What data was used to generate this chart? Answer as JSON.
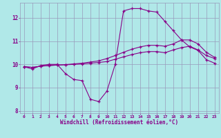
{
  "xlabel": "Windchill (Refroidissement éolien,°C)",
  "bg_color": "#b0e8e8",
  "grid_color": "#9999bb",
  "line_color": "#880088",
  "xlim": [
    -0.5,
    23.5
  ],
  "ylim": [
    7.9,
    12.65
  ],
  "xticks": [
    0,
    1,
    2,
    3,
    4,
    5,
    6,
    7,
    8,
    9,
    10,
    11,
    12,
    13,
    14,
    15,
    16,
    17,
    18,
    19,
    20,
    21,
    22,
    23
  ],
  "yticks": [
    8,
    9,
    10,
    11,
    12
  ],
  "line1_x": [
    0,
    1,
    2,
    3,
    4,
    5,
    6,
    7,
    8,
    9,
    10,
    11,
    12,
    13,
    14,
    15,
    16,
    17,
    18,
    19,
    20,
    21,
    22,
    23
  ],
  "line1_y": [
    9.9,
    9.8,
    9.95,
    10.0,
    10.0,
    9.6,
    9.35,
    9.3,
    8.5,
    8.4,
    8.85,
    10.0,
    12.3,
    12.4,
    12.4,
    12.3,
    12.25,
    11.85,
    11.45,
    11.05,
    10.75,
    10.6,
    10.2,
    10.05
  ],
  "line2_x": [
    0,
    1,
    2,
    3,
    4,
    5,
    6,
    7,
    8,
    9,
    10,
    11,
    12,
    13,
    14,
    15,
    16,
    17,
    18,
    19,
    20,
    21,
    22,
    23
  ],
  "line2_y": [
    9.9,
    9.87,
    9.92,
    9.95,
    9.97,
    9.98,
    10.0,
    10.02,
    10.05,
    10.08,
    10.12,
    10.22,
    10.32,
    10.42,
    10.5,
    10.55,
    10.55,
    10.5,
    10.62,
    10.72,
    10.78,
    10.62,
    10.38,
    10.25
  ],
  "line3_x": [
    0,
    1,
    2,
    3,
    4,
    5,
    6,
    7,
    8,
    9,
    10,
    11,
    12,
    13,
    14,
    15,
    16,
    17,
    18,
    19,
    20,
    21,
    22,
    23
  ],
  "line3_y": [
    9.9,
    9.87,
    9.92,
    9.95,
    9.97,
    9.99,
    10.02,
    10.05,
    10.1,
    10.15,
    10.25,
    10.38,
    10.52,
    10.65,
    10.75,
    10.82,
    10.82,
    10.78,
    10.88,
    11.05,
    11.05,
    10.88,
    10.52,
    10.3
  ]
}
